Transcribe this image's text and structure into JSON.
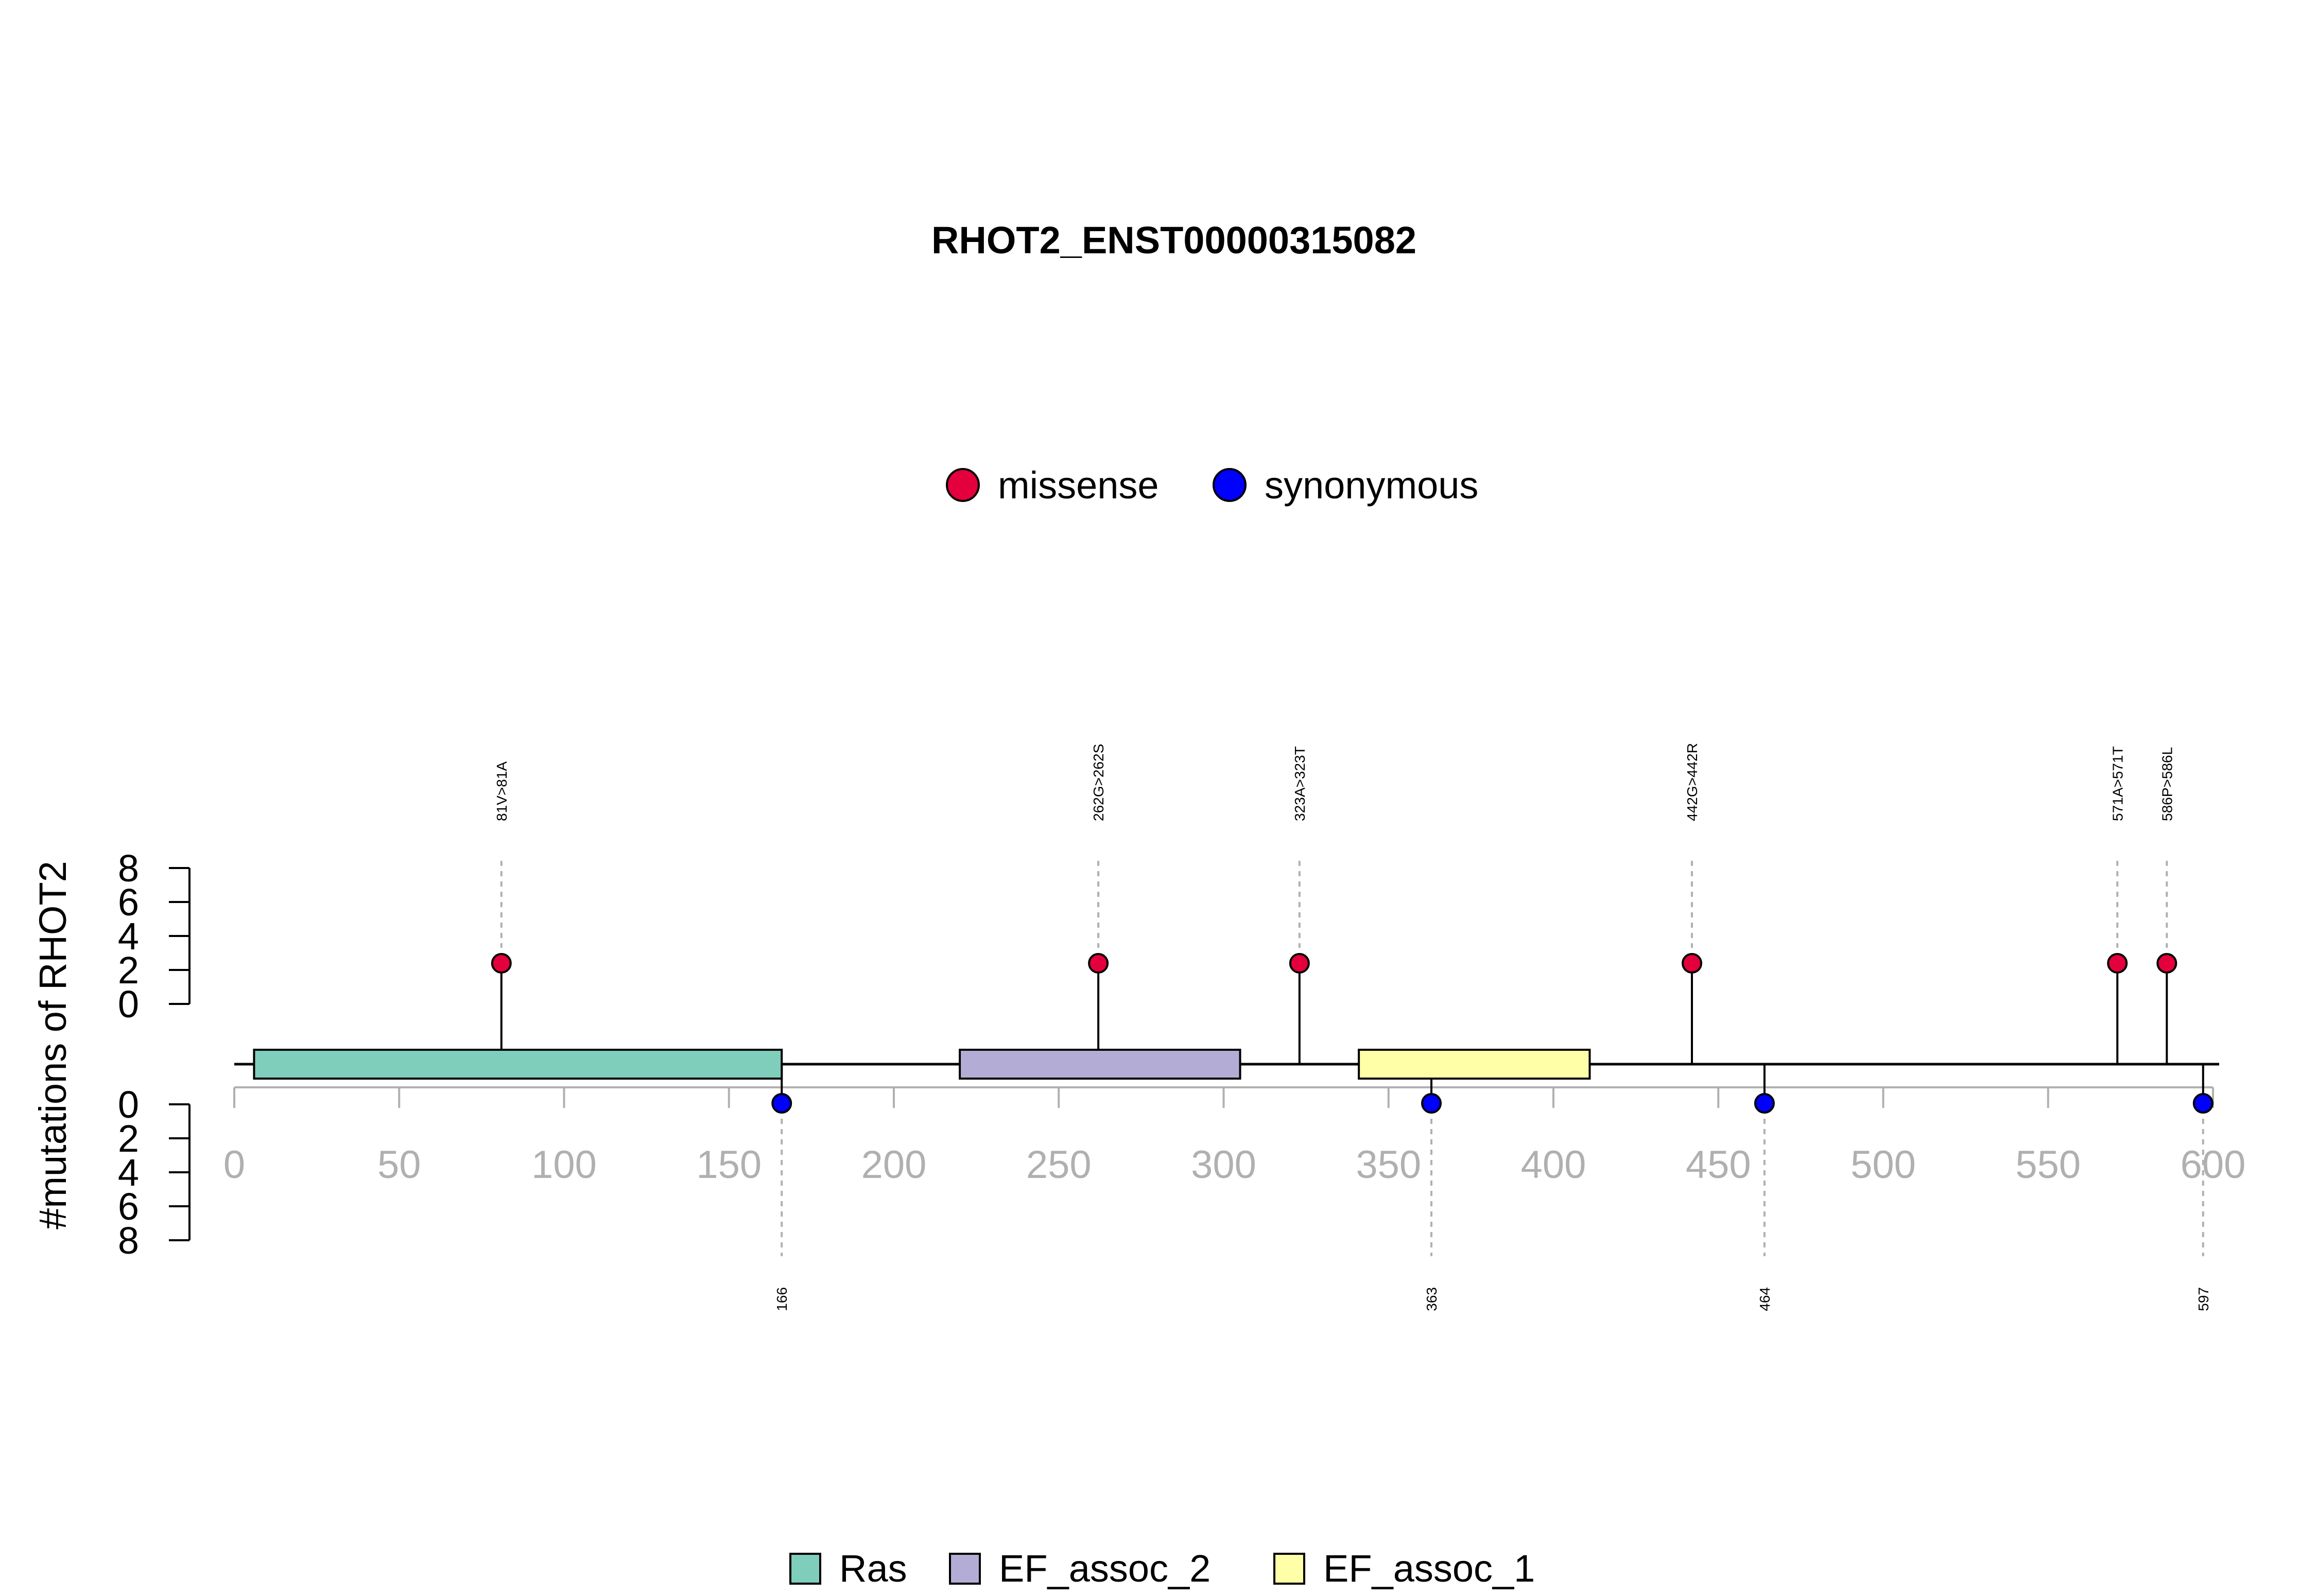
{
  "chart_data": {
    "type": "lollipop",
    "title": "RHOT2_ENST00000315082",
    "ylabel": "#mutations of RHOT2",
    "xlim": [
      0,
      600
    ],
    "x_ticks": [
      0,
      50,
      100,
      150,
      200,
      250,
      300,
      350,
      400,
      450,
      500,
      550,
      600
    ],
    "y_ticks_top": [
      0,
      2,
      4,
      6,
      8
    ],
    "y_ticks_bottom": [
      0,
      2,
      4,
      6,
      8
    ],
    "ylim": [
      0,
      8
    ],
    "protein_length": 600,
    "legend_mutation": [
      {
        "name": "missense",
        "color": "#E4003C"
      },
      {
        "name": "synonymous",
        "color": "#0000FF"
      }
    ],
    "legend_domains": [
      {
        "name": "Ras",
        "color": "#7FCDBB"
      },
      {
        "name": "EF_assoc_2",
        "color": "#B3ADD6"
      },
      {
        "name": "EF_assoc_1",
        "color": "#FFFFA8"
      }
    ],
    "domains": [
      {
        "name": "Ras",
        "start": 6,
        "end": 166,
        "color": "#7FCDBB"
      },
      {
        "name": "EF_assoc_2",
        "start": 220,
        "end": 305,
        "color": "#B3ADD6"
      },
      {
        "name": "EF_assoc_1",
        "start": 341,
        "end": 411,
        "color": "#FFFFA8"
      }
    ],
    "mutations_top": [
      {
        "pos": 81,
        "count": 1,
        "label": "81V>81A",
        "type": "missense"
      },
      {
        "pos": 262,
        "count": 1,
        "label": "262G>262S",
        "type": "missense"
      },
      {
        "pos": 323,
        "count": 1,
        "label": "323A>323T",
        "type": "missense"
      },
      {
        "pos": 442,
        "count": 1,
        "label": "442G>442R",
        "type": "missense"
      },
      {
        "pos": 571,
        "count": 1,
        "label": "571A>571T",
        "type": "missense"
      },
      {
        "pos": 586,
        "count": 1,
        "label": "586P>586L",
        "type": "missense"
      }
    ],
    "mutations_bottom": [
      {
        "pos": 166,
        "count": 1,
        "label": "166",
        "type": "synonymous"
      },
      {
        "pos": 363,
        "count": 1,
        "label": "363",
        "type": "synonymous"
      },
      {
        "pos": 464,
        "count": 1,
        "label": "464",
        "type": "synonymous"
      },
      {
        "pos": 597,
        "count": 1,
        "label": "597",
        "type": "synonymous"
      }
    ]
  }
}
